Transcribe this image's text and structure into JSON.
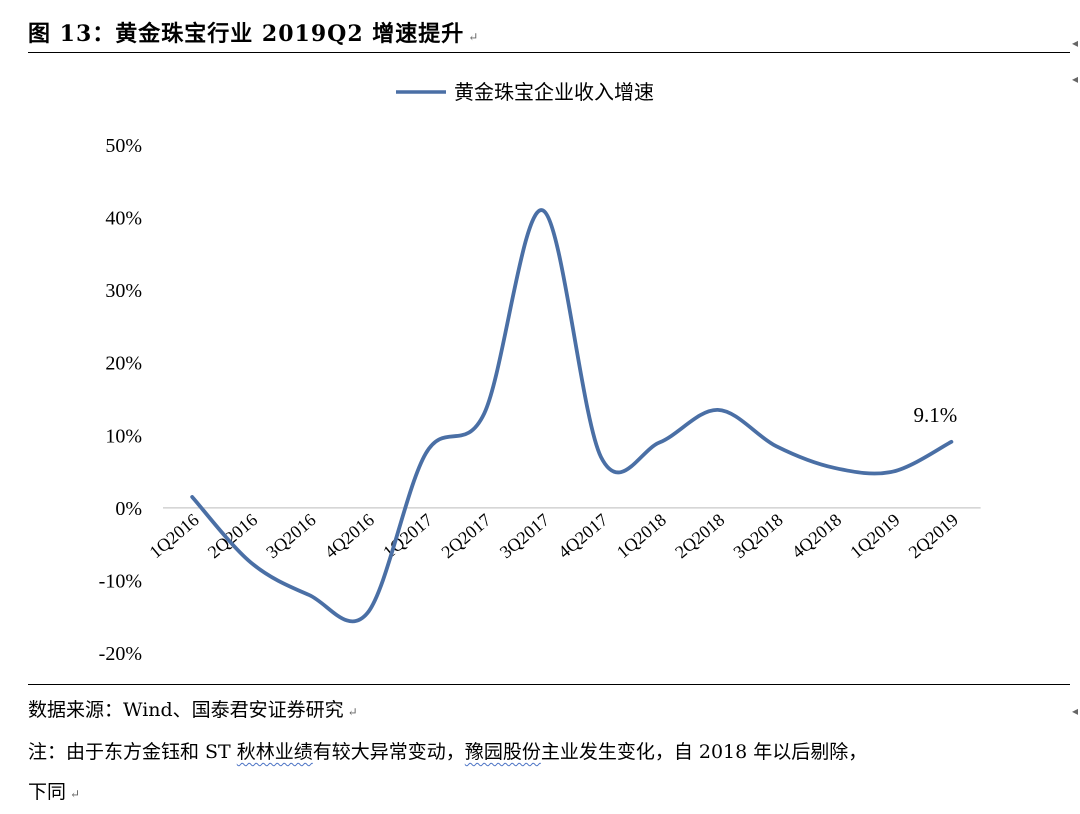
{
  "figure": {
    "title": "图 13：黄金珠宝行业 2019Q2 增速提升"
  },
  "notes": {
    "source": "数据来源：Wind、国泰君安证券研究",
    "note_part1": "注：由于东方金钰和 ST ",
    "note_squiggle1": "秋林业绩",
    "note_part2": "有较大异常变动，",
    "note_squiggle2": "豫园股份",
    "note_part3": "主业发生变化，自 2018 年以后剔除，",
    "note_line2": "下同"
  },
  "chart_data": {
    "type": "line",
    "title": "",
    "xlabel": "",
    "ylabel": "",
    "categories": [
      "1Q2016",
      "2Q2016",
      "3Q2016",
      "4Q2016",
      "1Q2017",
      "2Q2017",
      "3Q2017",
      "4Q2017",
      "1Q2018",
      "2Q2018",
      "3Q2018",
      "4Q2018",
      "1Q2019",
      "2Q2019"
    ],
    "series": [
      {
        "name": "黄金珠宝企业收入增速",
        "values": [
          1.5,
          -7.5,
          -12.0,
          -14.5,
          7.5,
          13.0,
          41.0,
          7.0,
          9.0,
          13.5,
          8.5,
          5.5,
          5.0,
          9.1
        ],
        "color": "#4a6fa5"
      }
    ],
    "y_ticks": [
      "50%",
      "40%",
      "30%",
      "20%",
      "10%",
      "0%",
      "-10%",
      "-20%"
    ],
    "ylim": [
      -20,
      50
    ],
    "y_tick_step": 10,
    "grid": false,
    "legend_position": "top-center",
    "annotations": [
      {
        "category": "2Q2019",
        "text": "9.1%"
      }
    ]
  }
}
